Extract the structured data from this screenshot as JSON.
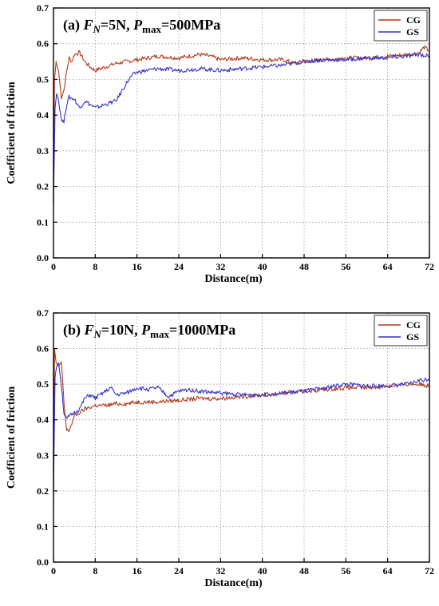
{
  "chart_data": [
    {
      "type": "line",
      "panel": "(a)",
      "title_parts": [
        "(a) ",
        "F",
        "N",
        "=5N, ",
        "P",
        "max",
        "=500MPa"
      ],
      "xlabel": "Distance(m)",
      "ylabel": "Coefficient of friction",
      "xlim": [
        0,
        72
      ],
      "ylim": [
        0,
        0.7
      ],
      "xticks": [
        "0",
        "8",
        "16",
        "24",
        "32",
        "40",
        "48",
        "56",
        "64",
        "72"
      ],
      "yticks": [
        "0.0",
        "0.1",
        "0.2",
        "0.3",
        "0.4",
        "0.5",
        "0.6",
        "0.7"
      ],
      "grid": true,
      "legend_position": "top-right",
      "series": [
        {
          "name": "CG",
          "color": "#b03a1a",
          "x": [
            0,
            0.2,
            0.5,
            1,
            1.5,
            2,
            2.5,
            3,
            3.5,
            4,
            5,
            6,
            7,
            8,
            10,
            12,
            14,
            16,
            18,
            20,
            24,
            28,
            30,
            32,
            36,
            40,
            44,
            46,
            48,
            52,
            56,
            60,
            64,
            68,
            70,
            71,
            72
          ],
          "y": [
            0.15,
            0.5,
            0.55,
            0.52,
            0.45,
            0.47,
            0.52,
            0.56,
            0.55,
            0.57,
            0.575,
            0.55,
            0.535,
            0.525,
            0.535,
            0.545,
            0.55,
            0.555,
            0.56,
            0.565,
            0.56,
            0.57,
            0.565,
            0.555,
            0.56,
            0.555,
            0.555,
            0.545,
            0.55,
            0.555,
            0.56,
            0.56,
            0.565,
            0.57,
            0.575,
            0.59,
            0.58
          ]
        },
        {
          "name": "GS",
          "color": "#3333cc",
          "x": [
            0,
            0.3,
            0.6,
            1,
            1.5,
            2,
            2.5,
            3,
            4,
            5,
            6,
            7,
            8,
            9,
            10,
            11,
            12,
            13,
            14,
            15,
            16,
            18,
            20,
            24,
            28,
            32,
            36,
            40,
            44,
            48,
            52,
            56,
            60,
            64,
            68,
            70,
            72
          ],
          "y": [
            0.15,
            0.42,
            0.46,
            0.44,
            0.39,
            0.38,
            0.43,
            0.45,
            0.445,
            0.42,
            0.44,
            0.43,
            0.42,
            0.425,
            0.43,
            0.435,
            0.44,
            0.465,
            0.49,
            0.51,
            0.52,
            0.525,
            0.53,
            0.525,
            0.53,
            0.525,
            0.53,
            0.535,
            0.54,
            0.55,
            0.555,
            0.555,
            0.56,
            0.56,
            0.565,
            0.57,
            0.565
          ]
        }
      ]
    },
    {
      "type": "line",
      "panel": "(b)",
      "title_parts": [
        "(b) ",
        "F",
        "N",
        "=10N, ",
        "P",
        "max",
        "=1000MPa"
      ],
      "xlabel": "Distance(m)",
      "ylabel": "Coefficient of friction",
      "xlim": [
        0,
        72
      ],
      "ylim": [
        0,
        0.7
      ],
      "xticks": [
        "0",
        "8",
        "16",
        "24",
        "32",
        "40",
        "48",
        "56",
        "64",
        "72"
      ],
      "yticks": [
        "0.0",
        "0.1",
        "0.2",
        "0.3",
        "0.4",
        "0.5",
        "0.6",
        "0.7"
      ],
      "grid": true,
      "legend_position": "top-right",
      "series": [
        {
          "name": "CG",
          "color": "#b03a1a",
          "x": [
            0,
            0.2,
            0.5,
            1,
            1.5,
            2,
            2.5,
            3,
            4,
            5,
            6,
            8,
            10,
            12,
            14,
            16,
            20,
            24,
            28,
            32,
            36,
            40,
            44,
            48,
            52,
            56,
            60,
            64,
            68,
            70,
            72
          ],
          "y": [
            0.15,
            0.6,
            0.56,
            0.55,
            0.56,
            0.45,
            0.37,
            0.37,
            0.41,
            0.42,
            0.43,
            0.44,
            0.44,
            0.445,
            0.445,
            0.45,
            0.45,
            0.455,
            0.46,
            0.46,
            0.465,
            0.47,
            0.475,
            0.48,
            0.485,
            0.49,
            0.49,
            0.495,
            0.5,
            0.5,
            0.495
          ]
        },
        {
          "name": "GS",
          "color": "#3333cc",
          "x": [
            0,
            0.3,
            0.6,
            1,
            1.5,
            2,
            2.5,
            3,
            4,
            5,
            6,
            7,
            8,
            10,
            11,
            12,
            14,
            16,
            18,
            20,
            22,
            24,
            26,
            28,
            32,
            36,
            40,
            44,
            48,
            52,
            56,
            60,
            64,
            68,
            70,
            72
          ],
          "y": [
            0.2,
            0.52,
            0.55,
            0.56,
            0.5,
            0.42,
            0.4,
            0.41,
            0.42,
            0.43,
            0.46,
            0.47,
            0.46,
            0.48,
            0.49,
            0.47,
            0.475,
            0.49,
            0.485,
            0.49,
            0.465,
            0.48,
            0.485,
            0.48,
            0.475,
            0.47,
            0.47,
            0.475,
            0.48,
            0.49,
            0.5,
            0.495,
            0.495,
            0.5,
            0.51,
            0.515
          ]
        }
      ]
    }
  ]
}
